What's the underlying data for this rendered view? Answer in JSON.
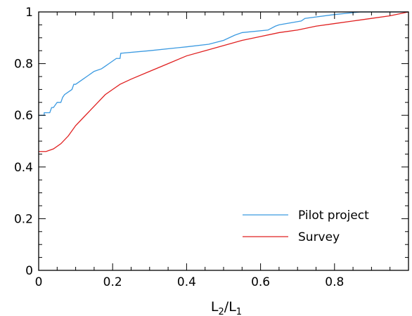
{
  "chart_data": {
    "type": "line",
    "title": "",
    "xlabel": "L2/L1",
    "xlabel_parts": {
      "main1": "L",
      "sub1": "2",
      "slash": "/",
      "main2": "L",
      "sub2": "1"
    },
    "ylabel": "",
    "xlim": [
      0,
      1
    ],
    "ylim": [
      0,
      1
    ],
    "xticks": [
      0,
      0.2,
      0.4,
      0.6,
      0.8
    ],
    "xtick_labels": [
      "0",
      "0.2",
      "0.4",
      "0.6",
      "0.8"
    ],
    "yticks": [
      0,
      0.2,
      0.4,
      0.6,
      0.8,
      1
    ],
    "ytick_labels": [
      "0",
      "0.2",
      "0.4",
      "0.6",
      "0.8",
      "1"
    ],
    "grid": false,
    "legend_position": "bottom-right",
    "series": [
      {
        "name": "Pilot project",
        "color": "#3b9ae1",
        "x": [
          0,
          0.015,
          0.015,
          0.03,
          0.035,
          0.04,
          0.05,
          0.06,
          0.065,
          0.07,
          0.08,
          0.09,
          0.095,
          0.1,
          0.12,
          0.13,
          0.15,
          0.17,
          0.18,
          0.19,
          0.21,
          0.22,
          0.222,
          0.3,
          0.4,
          0.46,
          0.5,
          0.53,
          0.55,
          0.62,
          0.64,
          0.65,
          0.71,
          0.72,
          0.8,
          0.87,
          1.0
        ],
        "y": [
          0.6,
          0.6,
          0.61,
          0.61,
          0.63,
          0.63,
          0.65,
          0.65,
          0.67,
          0.68,
          0.69,
          0.7,
          0.72,
          0.72,
          0.74,
          0.75,
          0.77,
          0.78,
          0.79,
          0.8,
          0.82,
          0.82,
          0.84,
          0.85,
          0.865,
          0.875,
          0.89,
          0.91,
          0.92,
          0.93,
          0.945,
          0.95,
          0.965,
          0.975,
          0.99,
          1.0,
          1.0
        ]
      },
      {
        "name": "Survey",
        "color": "#e02020",
        "x": [
          0,
          0.02,
          0.04,
          0.06,
          0.08,
          0.1,
          0.12,
          0.14,
          0.16,
          0.18,
          0.2,
          0.22,
          0.25,
          0.3,
          0.35,
          0.4,
          0.45,
          0.5,
          0.55,
          0.6,
          0.65,
          0.7,
          0.75,
          0.8,
          0.85,
          0.9,
          0.95,
          1.0
        ],
        "y": [
          0.46,
          0.46,
          0.47,
          0.49,
          0.52,
          0.56,
          0.59,
          0.62,
          0.65,
          0.68,
          0.7,
          0.72,
          0.74,
          0.77,
          0.8,
          0.83,
          0.85,
          0.87,
          0.89,
          0.905,
          0.92,
          0.93,
          0.945,
          0.955,
          0.965,
          0.975,
          0.985,
          1.0
        ]
      }
    ]
  }
}
